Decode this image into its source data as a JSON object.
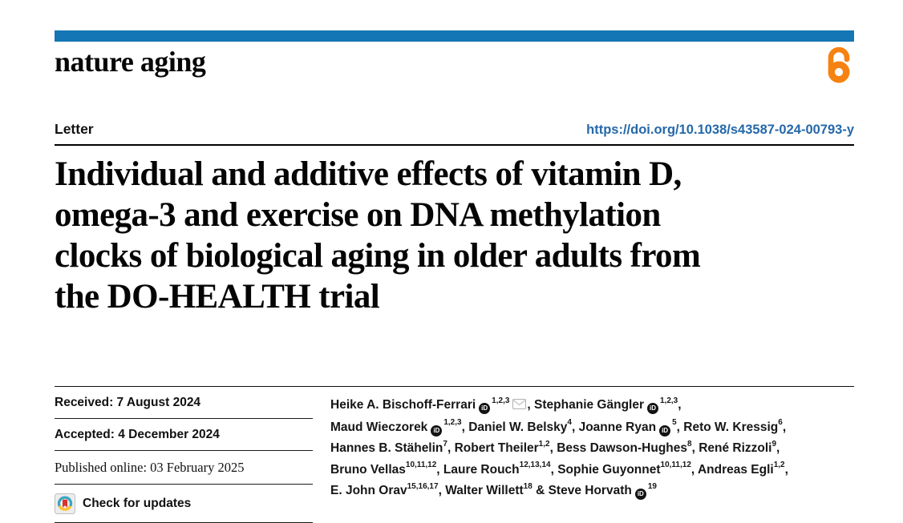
{
  "masthead": {
    "journal_name": "nature aging",
    "open_access_icon": "open-access-padlock"
  },
  "article": {
    "type_label": "Letter",
    "doi_link": "https://doi.org/10.1038/s43587-024-00793-y",
    "title": "Individual and additive effects of vitamin D, omega-3 and exercise on DNA methylation clocks of biological aging in older adults from the DO-HEALTH trial",
    "title_lines": [
      "Individual and additive effects of vitamin D,",
      "omega-3 and exercise on DNA methylation",
      "clocks of biological aging in older adults from",
      "the DO-HEALTH trial"
    ]
  },
  "history": {
    "received": "Received: 7 August 2024",
    "accepted": "Accepted: 4 December 2024",
    "published_online": "Published online: 03 February 2025",
    "check_for_updates": "Check for updates"
  },
  "authors": {
    "lines": [
      [
        {
          "name": "Heike A. Bischoff-Ferrari",
          "orcid": true,
          "sup": "1,2,3",
          "email": true,
          "after": ", "
        },
        {
          "name": "Stephanie Gängler",
          "orcid": true,
          "sup": "1,2,3",
          "after": ","
        }
      ],
      [
        {
          "name": "Maud Wieczorek",
          "orcid": true,
          "sup": "1,2,3",
          "after": ", "
        },
        {
          "name": "Daniel W. Belsky",
          "sup": "4",
          "after": ", "
        },
        {
          "name": "Joanne Ryan",
          "orcid": true,
          "sup": "5",
          "after": ", "
        },
        {
          "name": "Reto W. Kressig",
          "sup": "6",
          "after": ","
        }
      ],
      [
        {
          "name": "Hannes B. Stähelin",
          "sup": "7",
          "after": ", "
        },
        {
          "name": "Robert Theiler",
          "sup": "1,2",
          "after": ", "
        },
        {
          "name": "Bess Dawson-Hughes",
          "sup": "8",
          "after": ", "
        },
        {
          "name": "René Rizzoli",
          "sup": "9",
          "after": ","
        }
      ],
      [
        {
          "name": "Bruno Vellas",
          "sup": "10,11,12",
          "after": ", "
        },
        {
          "name": "Laure Rouch",
          "sup": "12,13,14",
          "after": ", "
        },
        {
          "name": "Sophie Guyonnet",
          "sup": "10,11,12",
          "after": ", "
        },
        {
          "name": "Andreas Egli",
          "sup": "1,2",
          "after": ","
        }
      ],
      [
        {
          "name": "E. John Orav",
          "sup": "15,16,17",
          "after": ", "
        },
        {
          "name": "Walter Willett",
          "sup": "18",
          "after": " & "
        },
        {
          "name": "Steve Horvath",
          "orcid": true,
          "sup": "19",
          "after": ""
        }
      ]
    ]
  },
  "colors": {
    "accent_bar": "#1476b4",
    "doi_link": "#2568a9",
    "open_access_orange": "#f68212",
    "crossmark_teal": "#3aa5c1",
    "crossmark_yellow": "#fdc12f",
    "crossmark_red": "#d6332f"
  }
}
